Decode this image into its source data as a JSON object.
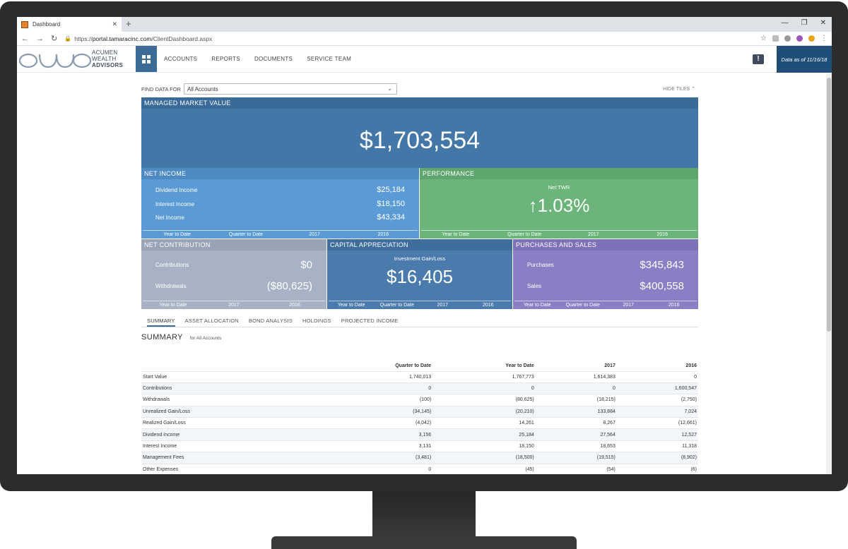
{
  "browser": {
    "tab_title": "Dashboard",
    "url_prefix": "https://",
    "url_domain": "portal.tamaracinc.com",
    "url_path": "/ClientDashboard.aspx"
  },
  "header": {
    "logo_line1": "ACUMEN",
    "logo_line2": "WEALTH",
    "logo_line3": "ADVISORS",
    "nav": [
      "ACCOUNTS",
      "REPORTS",
      "DOCUMENTS",
      "SERVICE TEAM"
    ],
    "data_as_of": "Data as of 11/16/18"
  },
  "filter": {
    "label": "FIND DATA FOR",
    "selected": "All Accounts",
    "hide_tiles": "HIDE TILES"
  },
  "tiles": {
    "mmv": {
      "title": "MANAGED MARKET VALUE",
      "value": "$1,703,554"
    },
    "net_income": {
      "title": "NET INCOME",
      "rows": [
        {
          "label": "Dividend Income",
          "value": "$25,184"
        },
        {
          "label": "Interest Income",
          "value": "$18,150"
        },
        {
          "label": "Net Income",
          "value": "$43,334"
        }
      ],
      "periods": [
        "Year to Date",
        "Quarter to Date",
        "2017",
        "2016"
      ]
    },
    "performance": {
      "title": "PERFORMANCE",
      "sub": "Net TWR",
      "value": "↑1.03%",
      "periods": [
        "Year to Date",
        "Quarter to Date",
        "2017",
        "2016"
      ]
    },
    "net_contribution": {
      "title": "NET CONTRIBUTION",
      "rows": [
        {
          "label": "Contributions",
          "value": "$0"
        },
        {
          "label": "Withdrawals",
          "value": "($80,625)"
        }
      ],
      "periods": [
        "Year to Date",
        "2017",
        "2016"
      ]
    },
    "capital_appreciation": {
      "title": "CAPITAL APPRECIATION",
      "sub": "Investment Gain/Loss",
      "value": "$16,405",
      "periods": [
        "Year to Date",
        "Quarter to Date",
        "2017",
        "2016"
      ]
    },
    "purchases_sales": {
      "title": "PURCHASES AND SALES",
      "rows": [
        {
          "label": "Purchases",
          "value": "$345,843"
        },
        {
          "label": "Sales",
          "value": "$400,558"
        }
      ],
      "periods": [
        "Year to Date",
        "Quarter to Date",
        "2017",
        "2016"
      ]
    }
  },
  "subtabs": [
    "SUMMARY",
    "ASSET ALLOCATION",
    "BOND ANALYSIS",
    "HOLDINGS",
    "PROJECTED INCOME"
  ],
  "summary": {
    "title": "SUMMARY",
    "subtitle": "for All Accounts",
    "columns": [
      "",
      "Quarter to Date",
      "Year to Date",
      "2017",
      "2016"
    ],
    "rows": [
      [
        "Start Value",
        "1,740,013",
        "1,767,773",
        "1,614,383",
        "0"
      ],
      [
        "Contributions",
        "0",
        "0",
        "0",
        "1,600,547"
      ],
      [
        "Withdrawals",
        "(100)",
        "(80,625)",
        "(18,215)",
        "(2,750)"
      ],
      [
        "Unrealized Gain/Loss",
        "(34,145)",
        "(20,210)",
        "133,884",
        "7,024"
      ],
      [
        "Realized Gain/Loss",
        "(4,042)",
        "14,261",
        "8,267",
        "(12,661)"
      ],
      [
        "Dividend Income",
        "3,156",
        "25,184",
        "27,564",
        "12,527"
      ],
      [
        "Interest Income",
        "3,131",
        "18,150",
        "18,653",
        "11,318"
      ],
      [
        "Management Fees",
        "(3,481)",
        "(18,500)",
        "(19,515)",
        "(8,902)"
      ],
      [
        "Other Expenses",
        "0",
        "(45)",
        "(54)",
        "(6)"
      ]
    ]
  }
}
